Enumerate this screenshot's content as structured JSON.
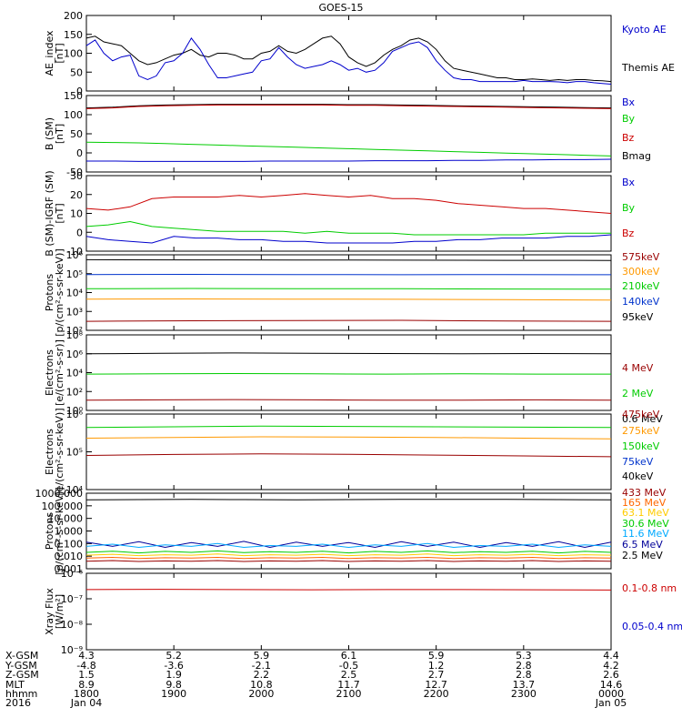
{
  "title": "GOES-15",
  "chart_data": [
    {
      "type": "line",
      "ylabel": [
        "AE_index",
        "[nT]"
      ],
      "yticks": [
        "200",
        "150",
        "100",
        "50",
        "0"
      ],
      "ylim": [
        0,
        200
      ],
      "legend": [
        {
          "label": "Kyoto AE",
          "color": "#0000cc"
        },
        {
          "label": "Themis AE",
          "color": "#000000"
        }
      ],
      "series": [
        {
          "color": "#000000",
          "values": [
            140,
            145,
            130,
            125,
            120,
            100,
            80,
            70,
            75,
            85,
            95,
            100,
            110,
            95,
            90,
            100,
            100,
            95,
            85,
            85,
            100,
            105,
            120,
            105,
            100,
            110,
            125,
            140,
            145,
            125,
            90,
            75,
            65,
            75,
            95,
            110,
            120,
            135,
            140,
            130,
            110,
            80,
            60,
            55,
            50,
            45,
            40,
            35,
            35,
            30,
            30,
            32,
            30,
            28,
            30,
            28,
            30,
            30,
            28,
            27,
            25
          ]
        },
        {
          "color": "#0000cc",
          "values": [
            120,
            135,
            100,
            80,
            90,
            95,
            40,
            30,
            40,
            75,
            80,
            100,
            140,
            110,
            70,
            35,
            35,
            40,
            45,
            50,
            80,
            85,
            115,
            90,
            70,
            60,
            65,
            70,
            80,
            70,
            55,
            60,
            50,
            55,
            75,
            105,
            115,
            125,
            130,
            115,
            80,
            55,
            35,
            30,
            30,
            25,
            25,
            25,
            25,
            25,
            28,
            25,
            25,
            25,
            24,
            22,
            25,
            25,
            22,
            20,
            18
          ]
        }
      ]
    },
    {
      "type": "line",
      "ylabel": [
        "B (SM)",
        "[nT]"
      ],
      "yticks": [
        "150",
        "100",
        "50",
        "0",
        "-50"
      ],
      "ylim": [
        -60,
        150
      ],
      "legend": [
        {
          "label": "Bx",
          "color": "#0000cc"
        },
        {
          "label": "By",
          "color": "#00cc00"
        },
        {
          "label": "Bz",
          "color": "#cc0000"
        },
        {
          "label": "Bmag",
          "color": "#000000"
        }
      ],
      "series": [
        {
          "color": "#000000",
          "values": [
            116,
            118,
            122,
            124,
            125,
            126,
            126,
            126,
            126,
            126,
            125,
            125,
            124,
            123,
            122,
            121,
            120,
            119,
            118,
            117,
            116
          ]
        },
        {
          "color": "#cc0000",
          "values": [
            114,
            116,
            120,
            122,
            123,
            124,
            124,
            124,
            124,
            124,
            123,
            123,
            122,
            121,
            120,
            119,
            118,
            117,
            116,
            115,
            114
          ]
        },
        {
          "color": "#00cc00",
          "values": [
            22,
            21,
            20,
            18,
            16,
            14,
            12,
            10,
            8,
            6,
            4,
            2,
            0,
            -2,
            -4,
            -6,
            -8,
            -10,
            -12,
            -14,
            -16
          ]
        },
        {
          "color": "#0000cc",
          "values": [
            -30,
            -30,
            -31,
            -31,
            -31,
            -31,
            -31,
            -30,
            -30,
            -30,
            -30,
            -29,
            -29,
            -29,
            -28,
            -28,
            -27,
            -27,
            -26,
            -26,
            -25
          ]
        }
      ]
    },
    {
      "type": "line",
      "ylabel": [
        "B (SM)-IGRF (SM)",
        "[nT]"
      ],
      "yticks": [
        "30",
        "20",
        "10",
        "0",
        "-10"
      ],
      "ylim": [
        -13,
        33
      ],
      "legend": [
        {
          "label": "Bx",
          "color": "#0000cc"
        },
        {
          "label": "By",
          "color": "#00cc00"
        },
        {
          "label": "Bz",
          "color": "#cc0000"
        }
      ],
      "series": [
        {
          "color": "#cc0000",
          "values": [
            13,
            12,
            14,
            19,
            20,
            20,
            20,
            21,
            20,
            21,
            22,
            21,
            20,
            21,
            19,
            19,
            18,
            16,
            15,
            14,
            13,
            13,
            12,
            11,
            10
          ]
        },
        {
          "color": "#00cc00",
          "values": [
            2,
            3,
            5,
            2,
            1,
            0,
            -1,
            -1,
            -1,
            -1,
            -2,
            -1,
            -2,
            -2,
            -2,
            -3,
            -3,
            -3,
            -3,
            -3,
            -3,
            -2,
            -2,
            -2,
            -2
          ]
        },
        {
          "color": "#0000cc",
          "values": [
            -4,
            -6,
            -7,
            -8,
            -4,
            -5,
            -5,
            -6,
            -6,
            -7,
            -7,
            -8,
            -8,
            -8,
            -8,
            -7,
            -7,
            -6,
            -6,
            -5,
            -5,
            -5,
            -4,
            -4,
            -3
          ]
        }
      ]
    },
    {
      "type": "line",
      "log": true,
      "ylabel": [
        "Protons",
        "[p/(cm²-s-sr-keV)]"
      ],
      "yticks": [
        "10⁶",
        "10⁵",
        "10⁴",
        "10³",
        "10²"
      ],
      "ylim": [
        100,
        1000000
      ],
      "legend": [
        {
          "label": "575keV",
          "color": "#990000"
        },
        {
          "label": "300keV",
          "color": "#ff9900"
        },
        {
          "label": "210keV",
          "color": "#00cc00"
        },
        {
          "label": "140keV",
          "color": "#0033cc"
        },
        {
          "label": "95keV",
          "color": "#000000"
        }
      ],
      "series": [
        {
          "color": "#000000",
          "values": [
            550000,
            540000,
            530000,
            520000,
            510000,
            500000
          ]
        },
        {
          "color": "#0033cc",
          "values": [
            90000,
            92000,
            90000,
            88000,
            90000,
            88000
          ]
        },
        {
          "color": "#00cc00",
          "values": [
            16000,
            16500,
            16000,
            16000,
            15500,
            15000
          ]
        },
        {
          "color": "#ff9900",
          "values": [
            4500,
            4600,
            4500,
            4400,
            4200,
            4000
          ]
        },
        {
          "color": "#990000",
          "values": [
            300,
            320,
            330,
            340,
            310,
            300
          ]
        }
      ]
    },
    {
      "type": "line",
      "log": true,
      "ylabel": [
        "Electrons",
        "[e/(cm²-s-sr)]"
      ],
      "yticks": [
        "10⁸",
        "10⁶",
        "10⁴",
        "10²",
        "10⁰"
      ],
      "ylim": [
        1,
        100000000
      ],
      "legend": [
        {
          "label": "4 MeV",
          "color": "#990000"
        },
        {
          "label": "2 MeV",
          "color": "#00cc00"
        },
        {
          "label": "0.6 MeV",
          "color": "#000000"
        }
      ],
      "series": [
        {
          "color": "#000000",
          "values": [
            1000000,
            1100000,
            1200000,
            1100000,
            1050000,
            1000000,
            1050000,
            1000000
          ]
        },
        {
          "color": "#00cc00",
          "values": [
            7000,
            7500,
            8000,
            7500,
            7000,
            7500,
            7000,
            7000
          ]
        },
        {
          "color": "#990000",
          "values": [
            12,
            13,
            14,
            13,
            12,
            12,
            13,
            12
          ]
        }
      ]
    },
    {
      "type": "line",
      "log": true,
      "ylabel": [
        "Electrons",
        "[e/(cm²-s-sr-keV)]"
      ],
      "yticks": [
        "10⁶",
        "10⁵",
        "10⁴"
      ],
      "ylim": [
        10000,
        1000000
      ],
      "legend": [
        {
          "label": "475keV",
          "color": "#990000"
        },
        {
          "label": "275keV",
          "color": "#ff9900"
        },
        {
          "label": "150keV",
          "color": "#00cc00"
        },
        {
          "label": "75keV",
          "color": "#0033cc"
        },
        {
          "label": "40keV",
          "color": "#000000"
        }
      ],
      "series": [
        {
          "color": "#00cc00",
          "values": [
            440000,
            460000,
            480000,
            470000,
            460000,
            450000,
            440000
          ]
        },
        {
          "color": "#ff9900",
          "values": [
            230000,
            240000,
            250000,
            245000,
            240000,
            230000,
            220000
          ]
        },
        {
          "color": "#990000",
          "values": [
            80000,
            85000,
            88000,
            86000,
            82000,
            78000,
            74000
          ]
        }
      ]
    },
    {
      "type": "line",
      "log": true,
      "ylabel": [
        "Protons",
        "[p/(cm²-s-sr-keV)]"
      ],
      "yticks": [
        "1000.000",
        "100.000",
        "10.000",
        "1.000",
        "0.100",
        "0.010",
        "0.001"
      ],
      "ylim": [
        0.001,
        1000
      ],
      "legend": [
        {
          "label": "433 MeV",
          "color": "#990000"
        },
        {
          "label": "165 MeV",
          "color": "#ff6600"
        },
        {
          "label": "63.1 MeV",
          "color": "#ffcc00"
        },
        {
          "label": "30.6 MeV",
          "color": "#00cc00"
        },
        {
          "label": "11.6 MeV",
          "color": "#00aaff"
        },
        {
          "label": "6.5 MeV",
          "color": "#000099"
        },
        {
          "label": "2.5 MeV",
          "color": "#000000"
        }
      ],
      "series": [
        {
          "color": "#000000",
          "values": [
            300,
            310,
            320,
            310,
            300,
            310,
            320,
            330,
            320,
            310,
            300
          ]
        },
        {
          "color": "#000099",
          "values": [
            0.13,
            0.06,
            0.14,
            0.05,
            0.12,
            0.06,
            0.15,
            0.05,
            0.13,
            0.06,
            0.12,
            0.05,
            0.14,
            0.06,
            0.13,
            0.05,
            0.12,
            0.06,
            0.14,
            0.05,
            0.13
          ]
        },
        {
          "color": "#00aaff",
          "values": [
            0.06,
            0.09,
            0.05,
            0.08,
            0.06,
            0.1,
            0.05,
            0.07,
            0.06,
            0.09,
            0.05,
            0.08,
            0.06,
            0.1,
            0.05,
            0.07,
            0.06,
            0.09,
            0.05,
            0.08,
            0.06
          ]
        },
        {
          "color": "#00cc00",
          "values": [
            0.02,
            0.025,
            0.018,
            0.024,
            0.02,
            0.026,
            0.019,
            0.023,
            0.02,
            0.025,
            0.018,
            0.024,
            0.02,
            0.026,
            0.019,
            0.023,
            0.02,
            0.025,
            0.018,
            0.024,
            0.02
          ]
        },
        {
          "color": "#ffcc00",
          "values": [
            0.012,
            0.014,
            0.011,
            0.013,
            0.012,
            0.015,
            0.011,
            0.013,
            0.012,
            0.014,
            0.011,
            0.013,
            0.012,
            0.015,
            0.011,
            0.013,
            0.012,
            0.014,
            0.011,
            0.013,
            0.012
          ]
        },
        {
          "color": "#ff6600",
          "values": [
            0.007,
            0.008,
            0.0065,
            0.0075,
            0.007,
            0.008,
            0.0065,
            0.0075,
            0.007,
            0.008,
            0.0065,
            0.0075,
            0.007,
            0.008,
            0.0065,
            0.0075,
            0.007,
            0.008,
            0.0065,
            0.0075,
            0.007
          ]
        },
        {
          "color": "#990000",
          "values": [
            0.004,
            0.0045,
            0.0038,
            0.0042,
            0.004,
            0.0045,
            0.0038,
            0.0042,
            0.004,
            0.0045,
            0.0038,
            0.0042,
            0.004,
            0.0045,
            0.0038,
            0.0042,
            0.004,
            0.0045,
            0.0038,
            0.0042,
            0.004
          ]
        }
      ]
    },
    {
      "type": "line",
      "log": true,
      "ylabel": [
        "Xray Flux",
        "[W/m²]"
      ],
      "yticks": [
        "10⁻⁶",
        "10⁻⁷",
        "10⁻⁸",
        "10⁻⁹"
      ],
      "ylim": [
        1e-09,
        1e-06
      ],
      "legend": [
        {
          "label": "0.1-0.8 nm",
          "color": "#cc0000"
        },
        {
          "label": "0.05-0.4 nm",
          "color": "#0000cc"
        }
      ],
      "series": [
        {
          "color": "#cc0000",
          "values": [
            2.3e-07,
            2.35e-07,
            2.3e-07,
            2.25e-07,
            2.3e-07,
            2.3e-07,
            2.25e-07,
            2.2e-07
          ]
        }
      ]
    }
  ],
  "x_axis": {
    "row_labels": [
      "X-GSM",
      "Y-GSM",
      "Z-GSM",
      "MLT",
      "hhmm",
      "2016"
    ],
    "columns": [
      [
        "4.3",
        "-4.8",
        "1.5",
        "8.9",
        "1800",
        "Jan 04"
      ],
      [
        "5.2",
        "-3.6",
        "1.9",
        "9.8",
        "1900",
        ""
      ],
      [
        "5.9",
        "-2.1",
        "2.2",
        "10.8",
        "2000",
        ""
      ],
      [
        "6.1",
        "-0.5",
        "2.5",
        "11.7",
        "2100",
        ""
      ],
      [
        "5.9",
        "1.2",
        "2.7",
        "12.7",
        "2200",
        ""
      ],
      [
        "5.3",
        "2.8",
        "2.8",
        "13.7",
        "2300",
        ""
      ],
      [
        "4.4",
        "4.2",
        "2.6",
        "14.6",
        "0000",
        "Jan 05"
      ]
    ]
  }
}
